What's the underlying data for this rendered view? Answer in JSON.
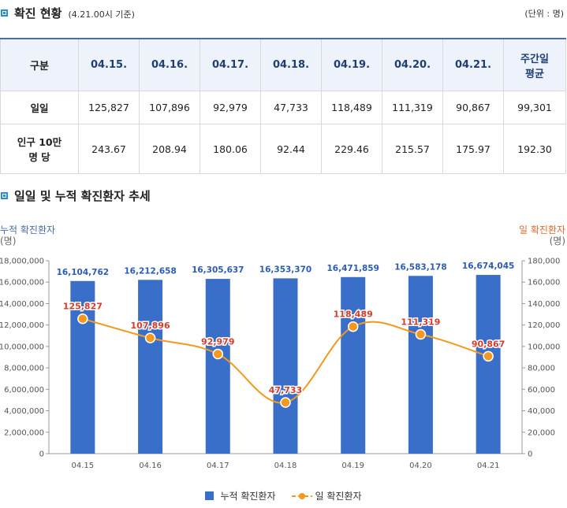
{
  "section1": {
    "title": "확진 현황",
    "subtitle": "(4.21.00시 기준)",
    "unit": "(단위 : 명)"
  },
  "table": {
    "headers": [
      "구분",
      "04.15.",
      "04.16.",
      "04.17.",
      "04.18.",
      "04.19.",
      "04.20.",
      "04.21.",
      "주간일 평균"
    ],
    "header_last_lines": [
      "주간일",
      "평균"
    ],
    "rows": [
      {
        "label": "일일",
        "values": [
          "125,827",
          "107,896",
          "92,979",
          "47,733",
          "118,489",
          "111,319",
          "90,867",
          "99,301"
        ]
      },
      {
        "label": "인구 10만 명 당",
        "label_lines": [
          "인구 10만",
          "명 당"
        ],
        "values": [
          "243.67",
          "208.94",
          "180.06",
          "92.44",
          "229.46",
          "215.57",
          "175.97",
          "192.30"
        ]
      }
    ]
  },
  "section2": {
    "title": "일일 및 누적 확진환자 추세"
  },
  "colors": {
    "bar": "#3a6fc9",
    "line": "#f39a1e",
    "left_axis": "#4a6aa8",
    "right_axis": "#e06b2a",
    "bar_label": "#2c5bb7",
    "line_label": "#d63c2a"
  },
  "chart_data": {
    "type": "bar+line",
    "categories": [
      "04.15",
      "04.16",
      "04.17",
      "04.18",
      "04.19",
      "04.20",
      "04.21"
    ],
    "left_axis_title": "누적 확진환자",
    "left_axis_unit": "(명)",
    "right_axis_title": "일 확진환자",
    "right_axis_unit": "(명)",
    "left_ylim": [
      0,
      18000000
    ],
    "left_ticks": [
      "0",
      "2,000,000",
      "4,000,000",
      "6,000,000",
      "8,000,000",
      "10,000,000",
      "12,000,000",
      "14,000,000",
      "16,000,000",
      "18,000,000"
    ],
    "right_ylim": [
      0,
      180000
    ],
    "right_ticks": [
      "0",
      "20,000",
      "40,000",
      "60,000",
      "80,000",
      "100,000",
      "120,000",
      "140,000",
      "160,000",
      "180,000"
    ],
    "series": [
      {
        "name": "누적 확진환자",
        "type": "bar",
        "axis": "left",
        "values": [
          16104762,
          16212658,
          16305637,
          16353370,
          16471859,
          16583178,
          16674045
        ],
        "labels": [
          "16,104,762",
          "16,212,658",
          "16,305,637",
          "16,353,370",
          "16,471,859",
          "16,583,178",
          "16,674,045"
        ]
      },
      {
        "name": "일 확진환자",
        "type": "line",
        "axis": "right",
        "values": [
          125827,
          107896,
          92979,
          47733,
          118489,
          111319,
          90867
        ],
        "labels": [
          "125,827",
          "107,896",
          "92,979",
          "47,733",
          "118,489",
          "111,319",
          "90,867"
        ]
      }
    ],
    "grid": false,
    "legend": "bottom"
  }
}
